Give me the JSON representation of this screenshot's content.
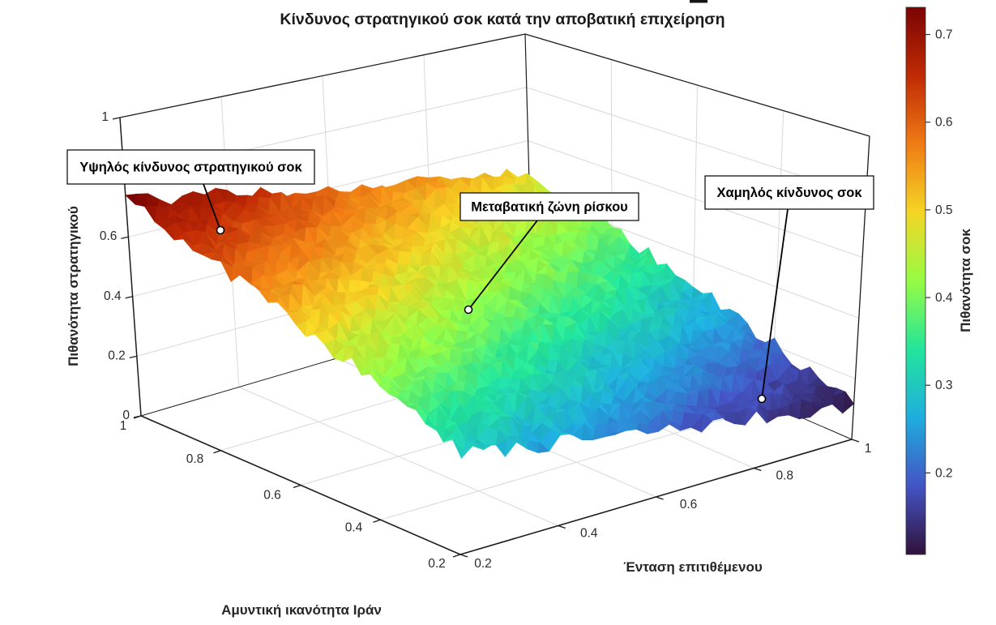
{
  "title": "Κίνδυνος στρατηγικού σοκ κατά την αποβατική επιχείρηση",
  "axes": {
    "x": {
      "label": "Αμυντική ικανότητα Ιράν",
      "ticks": [
        "1",
        "0.8",
        "0.6",
        "0.4",
        "0.2"
      ]
    },
    "y": {
      "label": "Ένταση επιτιθέμενου",
      "ticks": [
        "0.2",
        "0.4",
        "0.6",
        "0.8",
        "1"
      ]
    },
    "z": {
      "label": "Πιθανότητα στρατηγικού",
      "ticks": [
        "0",
        "0.2",
        "0.4",
        "0.6",
        "0.8",
        "1"
      ]
    }
  },
  "colorbar": {
    "label": "Πιθανότητα σοκ",
    "ticks": [
      "0.7",
      "0.6",
      "0.5",
      "0.4",
      "0.3",
      "0.2"
    ],
    "tick_values": [
      0.7,
      0.6,
      0.5,
      0.4,
      0.3,
      0.2
    ]
  },
  "annotations": [
    {
      "text": "Υψηλός κίνδυνος στρατηγικού σοκ"
    },
    {
      "text": "Μεταβατική ζώνη ρίσκου"
    },
    {
      "text": "Χαμηλός κίνδυνος σοκ"
    }
  ],
  "colors": {
    "axis_line": "#1c1c1c",
    "grid_line": "#d8d8d8",
    "tick_text": "#2b2b2b",
    "annotation_border": "#000000",
    "annotation_bg": "#ffffff"
  },
  "chart_data": {
    "type": "heatmap",
    "subtype": "3d-surface",
    "title": "Κίνδυνος στρατηγικού σοκ κατά την αποβατική επιχείρηση",
    "xlabel": "Αμυντική ικανότητα Ιράν",
    "ylabel": "Ένταση επιτιθέμενου",
    "zlabel": "Πιθανότητα στρατηγικού",
    "x_range": [
      0.2,
      1.0
    ],
    "y_range": [
      0.2,
      1.0
    ],
    "z_range": [
      0.0,
      1.0
    ],
    "x_ticks": [
      1.0,
      0.8,
      0.6,
      0.4,
      0.2
    ],
    "y_ticks": [
      0.2,
      0.4,
      0.6,
      0.8,
      1.0
    ],
    "z_ticks": [
      0.0,
      0.2,
      0.4,
      0.6,
      0.8,
      1.0
    ],
    "surface_corner_values": {
      "x1_y02": 0.725,
      "x1_y1": 0.48,
      "x02_y02": 0.3,
      "x02_y1": 0.112
    },
    "surface_model": "z linearly interpolated between corner values plus random facet noise",
    "noise_amplitude": 0.025,
    "grid_cells": 36,
    "colormap": "turbo",
    "colormap_stops": [
      "#30123b",
      "#4454c4",
      "#1fadde",
      "#23e59b",
      "#96fb44",
      "#f4d525",
      "#ef7b15",
      "#c02a05",
      "#7a0403"
    ],
    "color_limits": [
      0.107,
      0.731
    ],
    "colorbar_label": "Πιθανότητα σοκ",
    "colorbar_ticks": [
      0.7,
      0.6,
      0.5,
      0.4,
      0.3,
      0.2
    ],
    "annotations": [
      {
        "text": "Υψηλός κίνδυνος στρατηγικού σοκ",
        "region": "high-risk red zone (high Iran defensive capability)"
      },
      {
        "text": "Μεταβατική ζώνη ρίσκου",
        "region": "mid green-yellow transition zone"
      },
      {
        "text": "Χαμηλός κίνδυνος σοκ",
        "region": "low-risk dark blue zone (high attacker intensity)"
      }
    ],
    "legend_position": "right-colorbar",
    "grid": true
  }
}
